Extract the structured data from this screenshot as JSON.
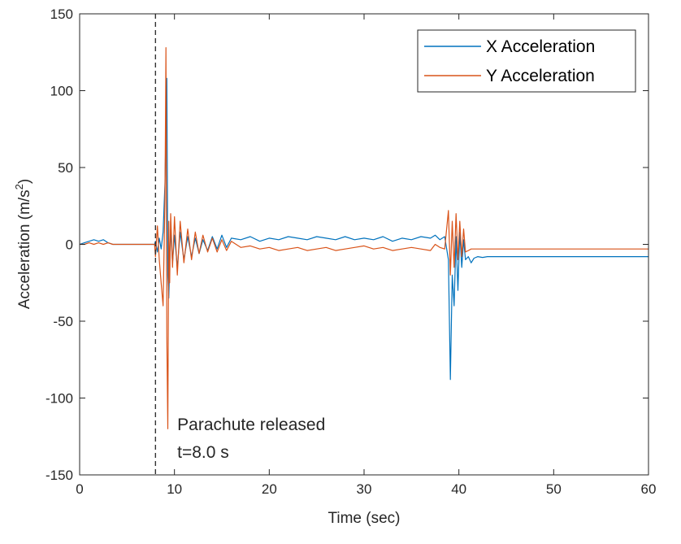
{
  "chart_data": {
    "type": "line",
    "xlabel": "Time (sec)",
    "ylabel_main": "Acceleration (m/s",
    "ylabel_sup": "2",
    "ylabel_close": ")",
    "xlim": [
      0,
      60
    ],
    "ylim": [
      -150,
      150
    ],
    "xticks": [
      0,
      10,
      20,
      30,
      40,
      50,
      60
    ],
    "yticks": [
      -150,
      -100,
      -50,
      0,
      50,
      100,
      150
    ],
    "legend_position": "top-right",
    "grid": false,
    "vline": {
      "x": 8.0,
      "style": "dashed"
    },
    "annotation": {
      "line1": "Parachute released",
      "line2": "t=8.0 s",
      "x": 10.3,
      "y1": -121,
      "y2": -139
    },
    "series": [
      {
        "name": "X Acceleration",
        "color": "#0072BD",
        "x": [
          0,
          0.5,
          1.0,
          1.5,
          2.0,
          2.5,
          3.0,
          3.5,
          4.0,
          5.0,
          6.0,
          7.0,
          7.9,
          8.0,
          8.2,
          8.4,
          8.6,
          8.8,
          9.0,
          9.2,
          9.3,
          9.4,
          9.6,
          9.8,
          10.0,
          10.3,
          10.6,
          11.0,
          11.4,
          11.8,
          12.2,
          12.6,
          13.0,
          13.5,
          14.0,
          14.5,
          15.0,
          15.5,
          16.0,
          17.0,
          18.0,
          19.0,
          20.0,
          21.0,
          22.0,
          23.0,
          24.0,
          25.0,
          26.0,
          27.0,
          28.0,
          29.0,
          30.0,
          31.0,
          32.0,
          33.0,
          34.0,
          35.0,
          36.0,
          37.0,
          37.5,
          38.0,
          38.5,
          38.9,
          39.1,
          39.3,
          39.5,
          39.7,
          39.9,
          40.1,
          40.3,
          40.5,
          40.7,
          41.0,
          41.3,
          41.6,
          42.0,
          42.5,
          43.0,
          45.0,
          50.0,
          55.0,
          60.0
        ],
        "y": [
          0,
          1,
          2,
          3,
          2,
          3,
          1,
          0,
          0,
          0,
          0,
          0,
          0,
          2,
          -5,
          4,
          -3,
          8,
          40,
          108,
          -20,
          -35,
          10,
          -12,
          6,
          -15,
          8,
          -10,
          5,
          -8,
          4,
          -6,
          3,
          -4,
          5,
          -3,
          6,
          -2,
          4,
          3,
          5,
          2,
          4,
          3,
          5,
          4,
          3,
          5,
          4,
          3,
          5,
          3,
          4,
          3,
          5,
          2,
          4,
          3,
          5,
          4,
          6,
          3,
          5,
          -10,
          -88,
          -20,
          -40,
          5,
          -30,
          8,
          -15,
          3,
          -10,
          -8,
          -12,
          -9,
          -8,
          -8.5,
          -8,
          -8,
          -8,
          -8,
          -8
        ]
      },
      {
        "name": "Y Acceleration",
        "color": "#D95319",
        "x": [
          0,
          0.5,
          1.0,
          1.5,
          2.0,
          2.5,
          3.0,
          3.5,
          4.0,
          5.0,
          6.0,
          7.0,
          7.9,
          8.0,
          8.2,
          8.4,
          8.6,
          8.8,
          9.0,
          9.1,
          9.2,
          9.3,
          9.4,
          9.5,
          9.6,
          9.8,
          10.0,
          10.3,
          10.6,
          11.0,
          11.4,
          11.8,
          12.2,
          12.6,
          13.0,
          13.5,
          14.0,
          14.5,
          15.0,
          15.5,
          16.0,
          17.0,
          18.0,
          19.0,
          20.0,
          21.0,
          22.0,
          23.0,
          24.0,
          25.0,
          26.0,
          27.0,
          28.0,
          29.0,
          30.0,
          31.0,
          32.0,
          33.0,
          34.0,
          35.0,
          36.0,
          37.0,
          37.5,
          38.0,
          38.5,
          38.9,
          39.1,
          39.3,
          39.5,
          39.7,
          39.9,
          40.1,
          40.3,
          40.5,
          40.7,
          41.0,
          41.3,
          41.6,
          42.0,
          42.5,
          43.0,
          45.0,
          50.0,
          55.0,
          60.0
        ],
        "y": [
          0,
          0,
          1,
          0,
          1,
          0,
          1,
          0,
          0,
          0,
          0,
          0,
          0,
          -8,
          12,
          -10,
          -25,
          -40,
          30,
          128,
          -60,
          -120,
          15,
          -25,
          20,
          -15,
          18,
          -20,
          15,
          -12,
          10,
          -10,
          8,
          -6,
          6,
          -5,
          4,
          -5,
          3,
          -4,
          2,
          -2,
          -1,
          -3,
          -2,
          -4,
          -3,
          -2,
          -4,
          -3,
          -2,
          -4,
          -3,
          -2,
          -1,
          -3,
          -2,
          -4,
          -3,
          -2,
          -3,
          -4,
          0,
          -2,
          -3,
          22,
          -20,
          15,
          -15,
          20,
          -10,
          15,
          -8,
          10,
          -5,
          -4,
          -3,
          -3,
          -3,
          -3,
          -3,
          -3,
          -3,
          -3,
          -3
        ]
      }
    ]
  }
}
